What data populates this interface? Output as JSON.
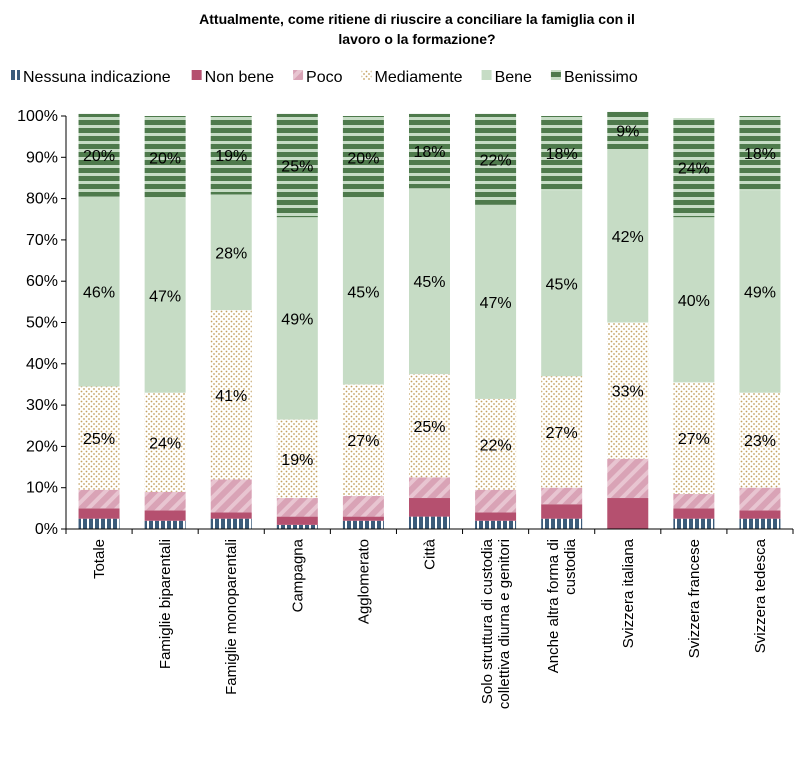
{
  "chart_data": {
    "type": "bar",
    "stacked": true,
    "title_lines": [
      "Attualmente, come ritiene di riuscire a conciliare la famiglia con il",
      "lavoro o la formazione?"
    ],
    "ylim": [
      0,
      100
    ],
    "y_ticks": [
      "0%",
      "10%",
      "20%",
      "30%",
      "40%",
      "50%",
      "60%",
      "70%",
      "80%",
      "90%",
      "100%"
    ],
    "legend_position": "top",
    "categories": [
      [
        "Totale"
      ],
      [
        "Famiglie biparentali"
      ],
      [
        "Famiglie monoparentali"
      ],
      [
        "Campagna"
      ],
      [
        "Agglomerato"
      ],
      [
        "Città"
      ],
      [
        "Solo struttura di custodia",
        "collettiva diurna e genitori"
      ],
      [
        "Anche altra forma di",
        "custodia"
      ],
      [
        "Svizzera italiana"
      ],
      [
        "Svizzera francese"
      ],
      [
        "Svizzera tedesca"
      ]
    ],
    "series": [
      {
        "name": "Nessuna indicazione",
        "color": "#3b5b7a",
        "pattern": "vstripe",
        "values": [
          2.5,
          2,
          2.5,
          1,
          2,
          3,
          2,
          2.5,
          0,
          2.5,
          2.5
        ],
        "labels": []
      },
      {
        "name": "Non bene",
        "color": "#b5506f",
        "pattern": "solid",
        "values": [
          2.5,
          2.5,
          1.5,
          2,
          1,
          4.5,
          2,
          3.5,
          7.5,
          2.5,
          2
        ],
        "labels": []
      },
      {
        "name": "Poco",
        "color": "#d9a3b6",
        "pattern": "diag",
        "values": [
          4.5,
          4.5,
          8,
          4.5,
          5,
          5,
          5.5,
          4,
          9.5,
          3.5,
          5.5
        ],
        "labels": []
      },
      {
        "name": "Mediamente",
        "color": "#e6d2a8",
        "pattern": "dots",
        "values": [
          25,
          24,
          41,
          19,
          27,
          25,
          22,
          27,
          33,
          27,
          23
        ],
        "labels": [
          "25%",
          "24%",
          "41%",
          "19%",
          "27%",
          "25%",
          "22%",
          "27%",
          "33%",
          "27%",
          "23%"
        ]
      },
      {
        "name": "Bene",
        "color": "#c6dcc5",
        "pattern": "solid",
        "values": [
          46,
          47,
          28,
          49,
          45,
          45,
          47,
          45,
          42,
          40,
          49
        ],
        "labels": [
          "46%",
          "47%",
          "28%",
          "49%",
          "45%",
          "45%",
          "47%",
          "45%",
          "42%",
          "40%",
          "49%"
        ]
      },
      {
        "name": "Benissimo",
        "color": "#4e7a4c",
        "pattern": "hstripe",
        "values": [
          20,
          20,
          19,
          25,
          20,
          18,
          22,
          18,
          9,
          24,
          18
        ],
        "labels": [
          "20%",
          "20%",
          "19%",
          "25%",
          "20%",
          "18%",
          "22%",
          "18%",
          "9%",
          "24%",
          "18%"
        ]
      }
    ]
  }
}
